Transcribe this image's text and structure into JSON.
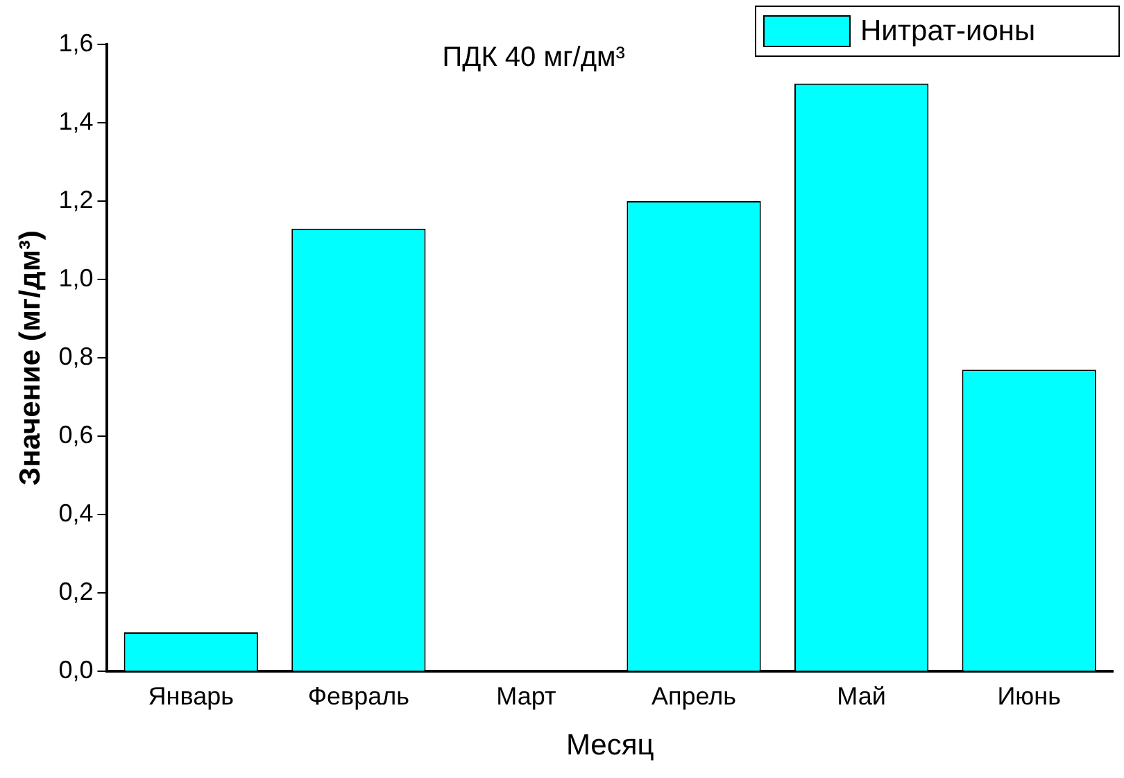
{
  "chart_data": {
    "type": "bar",
    "title": "ПДК 40 мг/дм³",
    "xlabel": "Месяц",
    "ylabel": "Значение (мг/дм³)",
    "categories": [
      "Январь",
      "Февраль",
      "Март",
      "Апрель",
      "Май",
      "Июнь"
    ],
    "series": [
      {
        "name": "Нитрат-ионы",
        "color": "#00ffff",
        "values": [
          0.1,
          1.13,
          0,
          1.2,
          1.5,
          0.77
        ]
      }
    ],
    "ylim": [
      0,
      1.6
    ],
    "yticks": [
      {
        "value": 0,
        "label": "0,0"
      },
      {
        "value": 0.2,
        "label": "0,2"
      },
      {
        "value": 0.4,
        "label": "0,4"
      },
      {
        "value": 0.6,
        "label": "0,6"
      },
      {
        "value": 0.8,
        "label": "0,8"
      },
      {
        "value": 1,
        "label": "1,0"
      },
      {
        "value": 1.2,
        "label": "1,2"
      },
      {
        "value": 1.4,
        "label": "1,4"
      },
      {
        "value": 1.6,
        "label": "1,6"
      }
    ],
    "grid": false,
    "legend": "top right"
  }
}
